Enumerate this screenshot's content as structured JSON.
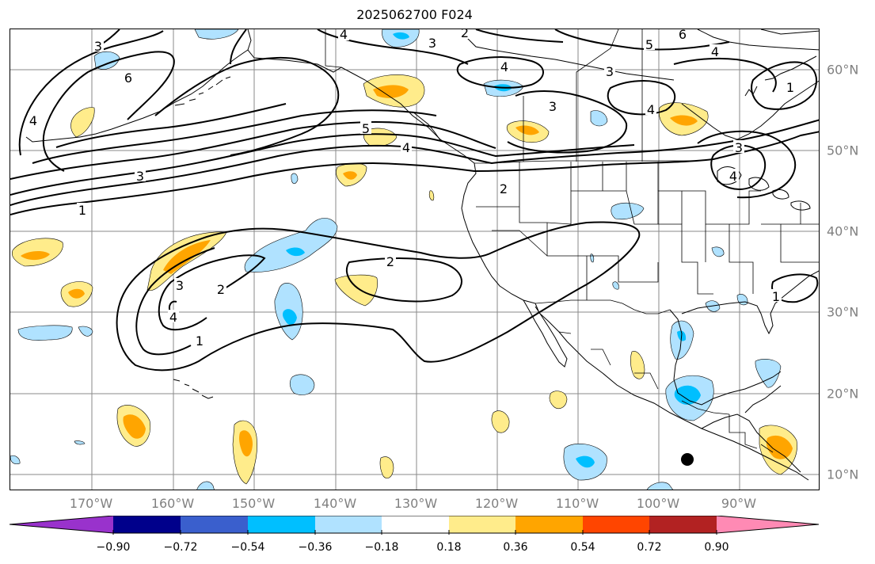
{
  "title": "2025062700 F024",
  "lon_labels": [
    "170°W",
    "160°W",
    "150°W",
    "140°W",
    "130°W",
    "120°W",
    "110°W",
    "100°W",
    "90°W"
  ],
  "lat_labels": [
    "60°N",
    "50°N",
    "40°N",
    "30°N",
    "20°N",
    "10°N"
  ],
  "colorbar": {
    "ticks": [
      "−0.90",
      "−0.72",
      "−0.54",
      "−0.36",
      "−0.18",
      "0.18",
      "0.36",
      "0.54",
      "0.72",
      "0.90"
    ],
    "colors": [
      "#9932cc",
      "#00008b",
      "#3a5fcd",
      "#00bfff",
      "#b0e2ff",
      "#ffffff",
      "#ffec8b",
      "#ffa500",
      "#ff4500",
      "#b22222",
      "#ff8ab4"
    ]
  },
  "contour_labels": [
    "1",
    "2",
    "3",
    "4",
    "5",
    "6"
  ],
  "colors": {
    "light_blue": "#b0e2ff",
    "mid_blue": "#00bfff",
    "light_yellow": "#ffec8b",
    "orange": "#ffa500",
    "grid": "#808080"
  }
}
